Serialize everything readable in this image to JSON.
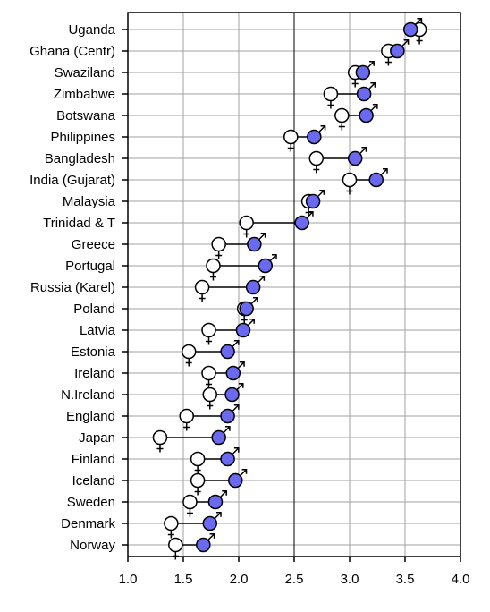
{
  "chart_data": {
    "type": "scatter",
    "categories": [
      "Uganda",
      "Ghana (Centr)",
      "Swaziland",
      "Zimbabwe",
      "Botswana",
      "Philippines",
      "Bangladesh",
      "India (Gujarat)",
      "Malaysia",
      "Trinidad & T",
      "Greece",
      "Portugal",
      "Russia (Karel)",
      "Poland",
      "Latvia",
      "Estonia",
      "Ireland",
      "N.Ireland",
      "England",
      "Japan",
      "Finland",
      "Iceland",
      "Sweden",
      "Denmark",
      "Norway"
    ],
    "series": [
      {
        "name": "Female",
        "symbol": "♀",
        "color": "#ffffff",
        "values": [
          3.63,
          3.35,
          3.05,
          2.83,
          2.93,
          2.47,
          2.7,
          3.0,
          2.63,
          2.07,
          1.82,
          1.77,
          1.67,
          2.05,
          1.73,
          1.55,
          1.73,
          1.74,
          1.53,
          1.29,
          1.63,
          1.63,
          1.56,
          1.39,
          1.43
        ]
      },
      {
        "name": "Male",
        "symbol": "♂",
        "color": "#6a6af0",
        "values": [
          3.55,
          3.43,
          3.12,
          3.13,
          3.15,
          2.68,
          3.05,
          3.24,
          2.67,
          2.57,
          2.14,
          2.24,
          2.13,
          2.07,
          2.04,
          1.9,
          1.95,
          1.94,
          1.9,
          1.82,
          1.9,
          1.97,
          1.79,
          1.74,
          1.68
        ]
      }
    ],
    "xlim": [
      1.0,
      4.0
    ],
    "xticks": [
      "1.0",
      "1.5",
      "2.0",
      "2.5",
      "3.0",
      "3.5",
      "4.0"
    ],
    "reference_line_x": 2.5,
    "grid": true
  }
}
